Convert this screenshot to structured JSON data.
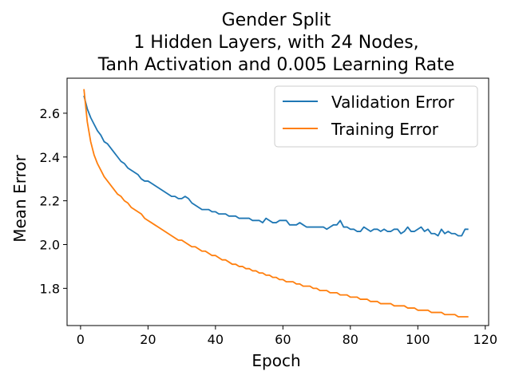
{
  "chart_data": {
    "type": "line",
    "title_lines": [
      "Gender Split",
      "1 Hidden Layers, with 24 Nodes,",
      "Tanh Activation and 0.005 Learning Rate"
    ],
    "xlabel": "Epoch",
    "ylabel": "Mean Error",
    "xlim": [
      -4,
      121
    ],
    "ylim": [
      1.63,
      2.76
    ],
    "x_ticks": [
      0,
      20,
      40,
      60,
      80,
      100,
      120
    ],
    "y_ticks": [
      1.8,
      2.0,
      2.2,
      2.4,
      2.6
    ],
    "x_tick_labels": [
      "0",
      "20",
      "40",
      "60",
      "80",
      "100",
      "120"
    ],
    "y_tick_labels": [
      "1.8",
      "2.0",
      "2.2",
      "2.4",
      "2.6"
    ],
    "grid": false,
    "legend_position": "top-right",
    "series": [
      {
        "name": "Validation Error",
        "color": "#1f77b4",
        "x": [
          1,
          2,
          3,
          4,
          5,
          6,
          7,
          8,
          9,
          10,
          11,
          12,
          13,
          14,
          15,
          16,
          17,
          18,
          19,
          20,
          21,
          22,
          23,
          24,
          25,
          26,
          27,
          28,
          29,
          30,
          31,
          32,
          33,
          34,
          35,
          36,
          37,
          38,
          39,
          40,
          41,
          42,
          43,
          44,
          45,
          46,
          47,
          48,
          49,
          50,
          51,
          52,
          53,
          54,
          55,
          56,
          57,
          58,
          59,
          60,
          61,
          62,
          63,
          64,
          65,
          66,
          67,
          68,
          69,
          70,
          71,
          72,
          73,
          74,
          75,
          76,
          77,
          78,
          79,
          80,
          81,
          82,
          83,
          84,
          85,
          86,
          87,
          88,
          89,
          90,
          91,
          92,
          93,
          94,
          95,
          96,
          97,
          98,
          99,
          100,
          101,
          102,
          103,
          104,
          105,
          106,
          107,
          108,
          109,
          110,
          111,
          112,
          113,
          114,
          115
        ],
        "values": [
          2.68,
          2.62,
          2.58,
          2.55,
          2.52,
          2.5,
          2.47,
          2.46,
          2.44,
          2.42,
          2.4,
          2.38,
          2.37,
          2.35,
          2.34,
          2.33,
          2.32,
          2.3,
          2.29,
          2.29,
          2.28,
          2.27,
          2.26,
          2.25,
          2.24,
          2.23,
          2.22,
          2.22,
          2.21,
          2.21,
          2.22,
          2.21,
          2.19,
          2.18,
          2.17,
          2.16,
          2.16,
          2.16,
          2.15,
          2.15,
          2.14,
          2.14,
          2.14,
          2.13,
          2.13,
          2.13,
          2.12,
          2.12,
          2.12,
          2.12,
          2.11,
          2.11,
          2.11,
          2.1,
          2.12,
          2.11,
          2.1,
          2.1,
          2.11,
          2.11,
          2.11,
          2.09,
          2.09,
          2.09,
          2.1,
          2.09,
          2.08,
          2.08,
          2.08,
          2.08,
          2.08,
          2.08,
          2.07,
          2.08,
          2.09,
          2.09,
          2.11,
          2.08,
          2.08,
          2.07,
          2.07,
          2.06,
          2.06,
          2.08,
          2.07,
          2.06,
          2.07,
          2.07,
          2.06,
          2.07,
          2.06,
          2.06,
          2.07,
          2.07,
          2.05,
          2.06,
          2.08,
          2.06,
          2.06,
          2.07,
          2.08,
          2.06,
          2.07,
          2.05,
          2.05,
          2.04,
          2.07,
          2.05,
          2.06,
          2.05,
          2.05,
          2.04,
          2.04,
          2.07,
          2.07
        ]
      },
      {
        "name": "Training Error",
        "color": "#ff7f0e",
        "x": [
          1,
          2,
          3,
          4,
          5,
          6,
          7,
          8,
          9,
          10,
          11,
          12,
          13,
          14,
          15,
          16,
          17,
          18,
          19,
          20,
          21,
          22,
          23,
          24,
          25,
          26,
          27,
          28,
          29,
          30,
          31,
          32,
          33,
          34,
          35,
          36,
          37,
          38,
          39,
          40,
          41,
          42,
          43,
          44,
          45,
          46,
          47,
          48,
          49,
          50,
          51,
          52,
          53,
          54,
          55,
          56,
          57,
          58,
          59,
          60,
          61,
          62,
          63,
          64,
          65,
          66,
          67,
          68,
          69,
          70,
          71,
          72,
          73,
          74,
          75,
          76,
          77,
          78,
          79,
          80,
          81,
          82,
          83,
          84,
          85,
          86,
          87,
          88,
          89,
          90,
          91,
          92,
          93,
          94,
          95,
          96,
          97,
          98,
          99,
          100,
          101,
          102,
          103,
          104,
          105,
          106,
          107,
          108,
          109,
          110,
          111,
          112,
          113,
          114,
          115
        ],
        "values": [
          2.71,
          2.56,
          2.47,
          2.41,
          2.37,
          2.34,
          2.31,
          2.29,
          2.27,
          2.25,
          2.23,
          2.22,
          2.2,
          2.19,
          2.17,
          2.16,
          2.15,
          2.14,
          2.12,
          2.11,
          2.1,
          2.09,
          2.08,
          2.07,
          2.06,
          2.05,
          2.04,
          2.03,
          2.02,
          2.02,
          2.01,
          2.0,
          1.99,
          1.99,
          1.98,
          1.97,
          1.97,
          1.96,
          1.95,
          1.95,
          1.94,
          1.93,
          1.93,
          1.92,
          1.91,
          1.91,
          1.9,
          1.9,
          1.89,
          1.89,
          1.88,
          1.88,
          1.87,
          1.87,
          1.86,
          1.86,
          1.85,
          1.85,
          1.84,
          1.84,
          1.83,
          1.83,
          1.83,
          1.82,
          1.82,
          1.81,
          1.81,
          1.81,
          1.8,
          1.8,
          1.79,
          1.79,
          1.79,
          1.78,
          1.78,
          1.78,
          1.77,
          1.77,
          1.77,
          1.76,
          1.76,
          1.76,
          1.75,
          1.75,
          1.75,
          1.74,
          1.74,
          1.74,
          1.73,
          1.73,
          1.73,
          1.73,
          1.72,
          1.72,
          1.72,
          1.72,
          1.71,
          1.71,
          1.71,
          1.7,
          1.7,
          1.7,
          1.7,
          1.69,
          1.69,
          1.69,
          1.69,
          1.68,
          1.68,
          1.68,
          1.68,
          1.67,
          1.67,
          1.67,
          1.67
        ]
      }
    ]
  }
}
